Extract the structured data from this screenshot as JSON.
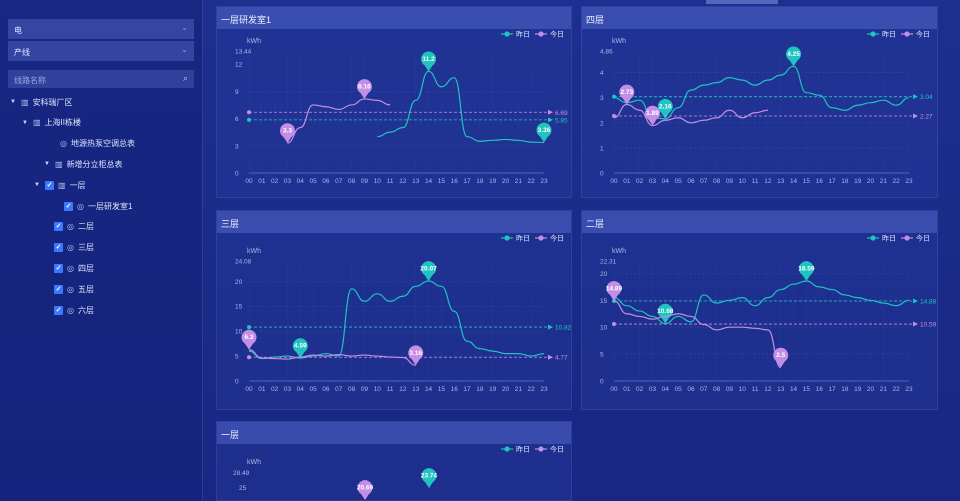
{
  "sidebar": {
    "energy_select": "电",
    "category_select": "产线",
    "search_placeholder": "线路名称",
    "tree": [
      {
        "label": "安科瑞厂区",
        "level": 0,
        "icon": "building-icon",
        "tri": "▼",
        "check": false
      },
      {
        "label": "上海II栋楼",
        "level": 1,
        "icon": "building-icon",
        "tri": "▼",
        "check": false
      },
      {
        "label": "地源热泵空调总表",
        "level": 2,
        "icon": "gauge-icon",
        "tri": "",
        "check": false
      },
      {
        "label": "新增分立柜总表",
        "level": 2,
        "icon": "building-icon",
        "tri": "▼",
        "check": false
      },
      {
        "label": "一层",
        "level": 3,
        "icon": "building-icon",
        "tri": "▼",
        "check": true
      },
      {
        "label": "一层研发室1",
        "level": 4,
        "icon": "gauge-icon",
        "tri": "",
        "check": true
      },
      {
        "label": "二层",
        "level": 3,
        "icon": "gauge-icon",
        "tri": "",
        "check": true
      },
      {
        "label": "三层",
        "level": 3,
        "icon": "gauge-icon",
        "tri": "",
        "check": true
      },
      {
        "label": "四层",
        "level": 3,
        "icon": "gauge-icon",
        "tri": "",
        "check": true
      },
      {
        "label": "五层",
        "level": 3,
        "icon": "gauge-icon",
        "tri": "",
        "check": true
      },
      {
        "label": "六层",
        "level": 3,
        "icon": "gauge-icon",
        "tri": "",
        "check": true
      }
    ]
  },
  "legend": {
    "yesterday": "昨日",
    "today": "今日"
  },
  "colors": {
    "yesterday": "#1fc3c0",
    "today": "#c48ee6"
  },
  "chart_data": [
    {
      "type": "line",
      "title": "一层研发室1",
      "ylabel": "kWh",
      "ylim": [
        0,
        13.44
      ],
      "yticks": [
        "0",
        "3",
        "6",
        "9",
        "12",
        "13.44"
      ],
      "x": [
        "00",
        "01",
        "02",
        "03",
        "04",
        "05",
        "06",
        "07",
        "08",
        "09",
        "10",
        "11",
        "12",
        "13",
        "14",
        "15",
        "16",
        "17",
        "18",
        "19",
        "20",
        "21",
        "22",
        "23"
      ],
      "series": [
        {
          "name": "昨日",
          "values": [
            null,
            null,
            null,
            null,
            null,
            null,
            null,
            null,
            null,
            null,
            4,
            4.5,
            5,
            8,
            11.2,
            9.5,
            10.5,
            4,
            3.5,
            3.6,
            3.7,
            3.6,
            3.4,
            3.36
          ],
          "avg": 5.85,
          "avg_label": "5.85",
          "max": {
            "label": "11.2",
            "i": 14
          },
          "min": {
            "label": "3.36",
            "i": 23
          }
        },
        {
          "name": "今日",
          "values": [
            null,
            null,
            null,
            3.3,
            5,
            7.5,
            7.3,
            7,
            7.5,
            8.16,
            8,
            7.5,
            null,
            null,
            null,
            null,
            null,
            null,
            null,
            null,
            null,
            null,
            null,
            null
          ],
          "avg": 6.69,
          "avg_label": "6.69",
          "max": {
            "label": "8.16",
            "i": 9
          },
          "min": {
            "label": "3.3",
            "i": 3
          }
        }
      ]
    },
    {
      "type": "line",
      "title": "四层",
      "ylabel": "kWh",
      "ylim": [
        0,
        4.86
      ],
      "yticks": [
        "0",
        "1",
        "2",
        "3",
        "4",
        "4.86"
      ],
      "x": [
        "00",
        "01",
        "02",
        "03",
        "04",
        "05",
        "06",
        "07",
        "08",
        "09",
        "10",
        "11",
        "12",
        "13",
        "14",
        "15",
        "16",
        "17",
        "18",
        "19",
        "20",
        "21",
        "22",
        "23"
      ],
      "series": [
        {
          "name": "昨日",
          "values": [
            3,
            2.8,
            2.9,
            2.2,
            2.16,
            2.6,
            3.3,
            3.5,
            3.6,
            3.8,
            3.7,
            3.5,
            3.7,
            3.9,
            4.25,
            3.2,
            3.1,
            2.6,
            2.5,
            2.7,
            2.8,
            2.9,
            2.7,
            3.0
          ],
          "avg": 3.04,
          "avg_label": "3.04",
          "max": {
            "label": "4.25",
            "i": 14
          },
          "min": {
            "label": "2.16",
            "i": 4
          }
        },
        {
          "name": "今日",
          "values": [
            2.2,
            2.73,
            2.5,
            1.89,
            2.1,
            2.2,
            2.0,
            2.1,
            2.2,
            2.5,
            2.2,
            2.4,
            2.5,
            null,
            null,
            null,
            null,
            null,
            null,
            null,
            null,
            null,
            null,
            null
          ],
          "avg": 2.27,
          "avg_label": "2.27",
          "max": {
            "label": "2.73",
            "i": 1
          },
          "min": {
            "label": "1.89",
            "i": 3
          }
        }
      ]
    },
    {
      "type": "line",
      "title": "三层",
      "ylabel": "kWh",
      "ylim": [
        0,
        24.08
      ],
      "yticks": [
        "0",
        "5",
        "10",
        "15",
        "20",
        "24.08"
      ],
      "x": [
        "00",
        "01",
        "02",
        "03",
        "04",
        "05",
        "06",
        "07",
        "08",
        "09",
        "10",
        "11",
        "12",
        "13",
        "14",
        "15",
        "16",
        "17",
        "18",
        "19",
        "20",
        "21",
        "22",
        "23"
      ],
      "series": [
        {
          "name": "昨日",
          "values": [
            6,
            4.5,
            4.8,
            5,
            4.59,
            5,
            5.5,
            5,
            18.5,
            16,
            17.5,
            16,
            17,
            19,
            20.07,
            19,
            14,
            8,
            6.5,
            6,
            5.5,
            5.5,
            5,
            5.5
          ],
          "avg": 10.82,
          "avg_label": "10.82",
          "max": {
            "label": "20.07",
            "i": 14
          },
          "min": {
            "label": "4.59",
            "i": 4
          }
        },
        {
          "name": "今日",
          "values": [
            6.3,
            4.6,
            4.5,
            4.4,
            4.8,
            5.2,
            5.0,
            5.3,
            5.0,
            5.2,
            5.0,
            4.8,
            4.7,
            3.16,
            null,
            null,
            null,
            null,
            null,
            null,
            null,
            null,
            null,
            null
          ],
          "avg": 4.77,
          "avg_label": "4.77",
          "max": {
            "label": "6.3",
            "i": 0
          },
          "min": {
            "label": "3.16",
            "i": 13
          }
        }
      ]
    },
    {
      "type": "line",
      "title": "二层",
      "ylabel": "kWh",
      "ylim": [
        0,
        22.31
      ],
      "yticks": [
        "0",
        "5",
        "10",
        "15",
        "20",
        "22.31"
      ],
      "x": [
        "00",
        "01",
        "02",
        "03",
        "04",
        "05",
        "06",
        "07",
        "08",
        "09",
        "10",
        "11",
        "12",
        "13",
        "14",
        "15",
        "16",
        "17",
        "18",
        "19",
        "20",
        "21",
        "22",
        "23"
      ],
      "series": [
        {
          "name": "昨日",
          "values": [
            15.5,
            14,
            13,
            12,
            10.68,
            12,
            11,
            16,
            14.5,
            15,
            15.5,
            14,
            15.5,
            17,
            18,
            18.59,
            17.5,
            17,
            16,
            15.5,
            15,
            14.5,
            14,
            15
          ],
          "avg": 14.88,
          "avg_label": "14.88",
          "max": {
            "label": "18.59",
            "i": 15
          },
          "min": {
            "label": "10.68",
            "i": 4
          }
        },
        {
          "name": "今日",
          "values": [
            14.89,
            12.5,
            12,
            11.5,
            12,
            12.5,
            12,
            10.5,
            9.5,
            10,
            10,
            9.8,
            9.5,
            2.5,
            null,
            null,
            null,
            null,
            null,
            null,
            null,
            null,
            null,
            null
          ],
          "avg": 10.59,
          "avg_label": "10.59",
          "max": {
            "label": "14.89",
            "i": 0
          },
          "min": {
            "label": "2.5",
            "i": 13
          }
        }
      ]
    },
    {
      "type": "line",
      "title": "一层",
      "ylabel": "kWh",
      "ylim": [
        0,
        28.49
      ],
      "yticks": [
        "25",
        "28.49"
      ],
      "x": [],
      "series": [
        {
          "name": "昨日",
          "values": [],
          "max": {
            "label": "23.74"
          }
        },
        {
          "name": "今日",
          "values": [],
          "max": {
            "label": "20.69"
          }
        }
      ]
    }
  ]
}
